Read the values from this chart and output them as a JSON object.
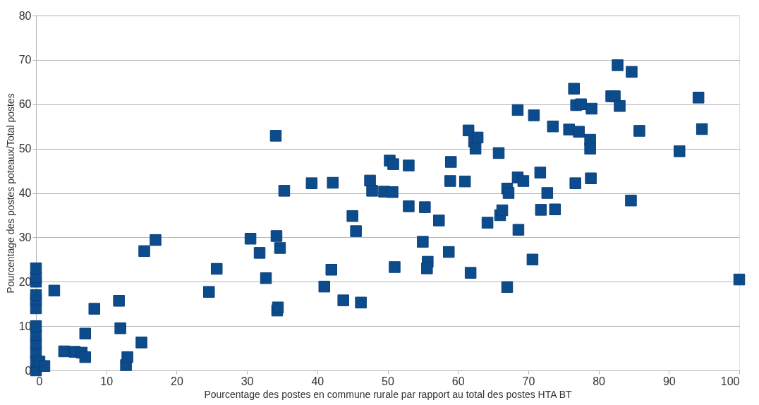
{
  "chart_data": {
    "type": "scatter",
    "xlabel": "Pourcentage des postes en commune rurale par rapport au total des postes HTA BT",
    "ylabel": "Pourcentage des postes poteaux/Total postes",
    "xlim": [
      0,
      100
    ],
    "xticks": [
      0,
      10,
      20,
      30,
      40,
      50,
      60,
      70,
      80,
      90,
      100
    ],
    "ylim": [
      0,
      80
    ],
    "yticks": [
      0,
      10,
      20,
      30,
      40,
      50,
      60,
      70,
      80
    ],
    "grid": "y",
    "marker": "square",
    "series": [
      {
        "color": "#0d4c8c",
        "x": [
          0,
          0,
          0,
          0,
          0,
          0,
          0,
          0,
          0,
          0,
          0,
          0,
          0.5,
          1.2,
          2.6,
          4.0,
          5.5,
          6.5,
          7.0,
          7.0,
          8.3,
          11.8,
          12.0,
          12.8,
          13.0,
          15.0,
          15.4,
          17.0,
          24.6,
          25.7,
          30.5,
          31.8,
          32.7,
          34.1,
          34.2,
          34.7,
          34.3,
          34.4,
          35.3,
          39.2,
          42.2,
          42.0,
          41.0,
          43.7,
          45.0,
          45.5,
          46.2,
          47.5,
          47.8,
          49.5,
          50.7,
          50.3,
          50.8,
          51.0,
          53.0,
          53.0,
          55.3,
          55.0,
          55.7,
          55.6,
          57.3,
          58.7,
          59.0,
          58.9,
          61.0,
          61.5,
          62.3,
          62.8,
          62.5,
          61.8,
          64.2,
          65.8,
          66.0,
          66.3,
          67.0,
          67.2,
          67.0,
          68.5,
          69.3,
          68.5,
          68.6,
          70.8,
          70.6,
          71.7,
          71.8,
          72.7,
          73.5,
          73.8,
          75.8,
          76.5,
          76.7,
          76.8,
          77.5,
          77.2,
          78.8,
          78.8,
          79.0,
          78.9,
          81.8,
          82.3,
          82.7,
          83.0,
          84.7,
          84.6,
          85.8,
          91.5,
          94.2,
          94.7,
          100
        ],
        "values": [
          0,
          2,
          4,
          6,
          8,
          10,
          14,
          16,
          17,
          20,
          21,
          23,
          2,
          1,
          18.0,
          4.3,
          4.2,
          4.0,
          8.3,
          3.0,
          13.9,
          15.7,
          9.5,
          1.2,
          3.0,
          6.3,
          26.9,
          29.4,
          17.7,
          22.9,
          29.7,
          26.5,
          20.8,
          52.9,
          30.3,
          27.6,
          13.5,
          14.2,
          40.5,
          42.2,
          42.3,
          22.7,
          18.9,
          15.8,
          34.8,
          31.4,
          15.3,
          42.8,
          40.5,
          40.3,
          40.2,
          47.3,
          46.5,
          23.3,
          46.2,
          37.0,
          36.8,
          29.0,
          24.5,
          23.0,
          33.8,
          26.7,
          47.0,
          42.7,
          42.6,
          54.1,
          51.6,
          52.5,
          50.0,
          22.0,
          33.3,
          49.0,
          35.0,
          36.1,
          41.0,
          40.0,
          18.8,
          43.5,
          42.7,
          58.7,
          31.7,
          57.5,
          25.0,
          44.6,
          36.2,
          40.0,
          55.0,
          36.3,
          54.3,
          63.5,
          42.2,
          59.8,
          60.0,
          53.8,
          52.0,
          50.0,
          59.0,
          43.3,
          61.8,
          61.8,
          68.8,
          59.6,
          67.3,
          38.3,
          54.0,
          49.4,
          61.5,
          54.4,
          20.5
        ]
      }
    ]
  }
}
